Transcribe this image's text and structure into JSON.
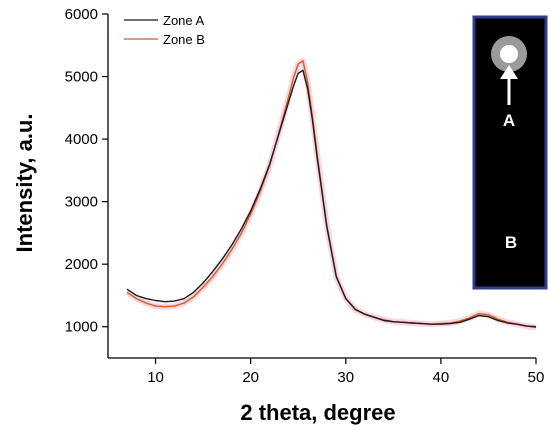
{
  "chart_data": {
    "type": "line",
    "xlabel": "2 theta, degree",
    "ylabel": "Intensity, a.u.",
    "xlim": [
      5,
      50
    ],
    "ylim": [
      500,
      6000
    ],
    "xticks": [
      10,
      20,
      30,
      40,
      50
    ],
    "yticks": [
      1000,
      2000,
      3000,
      4000,
      5000,
      6000
    ],
    "xtick_labels": [
      "10",
      "20",
      "30",
      "40",
      "50"
    ],
    "ytick_labels": [
      "1000",
      "2000",
      "3000",
      "4000",
      "5000",
      "6000"
    ],
    "grid": false,
    "legend_position": "top-left",
    "series": [
      {
        "name": "Zone A",
        "color": "#1a1a1a",
        "x": [
          7,
          8,
          9,
          10,
          11,
          12,
          13,
          14,
          15,
          16,
          17,
          18,
          19,
          20,
          21,
          22,
          23,
          24,
          24.5,
          25,
          25.5,
          26,
          26.5,
          27,
          28,
          29,
          30,
          31,
          32,
          33,
          34,
          35,
          36,
          37,
          38,
          39,
          40,
          41,
          42,
          43,
          44,
          45,
          46,
          47,
          48,
          49,
          50
        ],
        "y": [
          1600,
          1500,
          1450,
          1420,
          1400,
          1410,
          1450,
          1550,
          1700,
          1880,
          2080,
          2300,
          2560,
          2850,
          3200,
          3600,
          4100,
          4600,
          4850,
          5050,
          5100,
          4800,
          4300,
          3700,
          2600,
          1800,
          1450,
          1280,
          1200,
          1150,
          1100,
          1080,
          1070,
          1060,
          1050,
          1040,
          1040,
          1050,
          1070,
          1120,
          1180,
          1160,
          1100,
          1060,
          1040,
          1010,
          1000
        ]
      },
      {
        "name": "Zone B",
        "color": "#c8602a",
        "x": [
          7,
          8,
          9,
          10,
          11,
          12,
          13,
          14,
          15,
          16,
          17,
          18,
          19,
          20,
          21,
          22,
          23,
          24,
          24.5,
          25,
          25.5,
          26,
          26.5,
          27,
          28,
          29,
          30,
          31,
          32,
          33,
          34,
          35,
          36,
          37,
          38,
          39,
          40,
          41,
          42,
          43,
          44,
          45,
          46,
          47,
          48,
          49,
          50
        ],
        "y": [
          1550,
          1450,
          1380,
          1330,
          1320,
          1330,
          1380,
          1480,
          1630,
          1800,
          2000,
          2230,
          2490,
          2800,
          3160,
          3580,
          4120,
          4680,
          4980,
          5200,
          5250,
          4900,
          4350,
          3750,
          2620,
          1800,
          1450,
          1270,
          1200,
          1150,
          1110,
          1080,
          1070,
          1060,
          1050,
          1040,
          1050,
          1060,
          1090,
          1140,
          1210,
          1190,
          1120,
          1070,
          1040,
          1010,
          990
        ]
      }
    ]
  },
  "inset": {
    "label_a": "A",
    "label_b": "B",
    "background": "#000000",
    "border": "#2d3e8c"
  }
}
